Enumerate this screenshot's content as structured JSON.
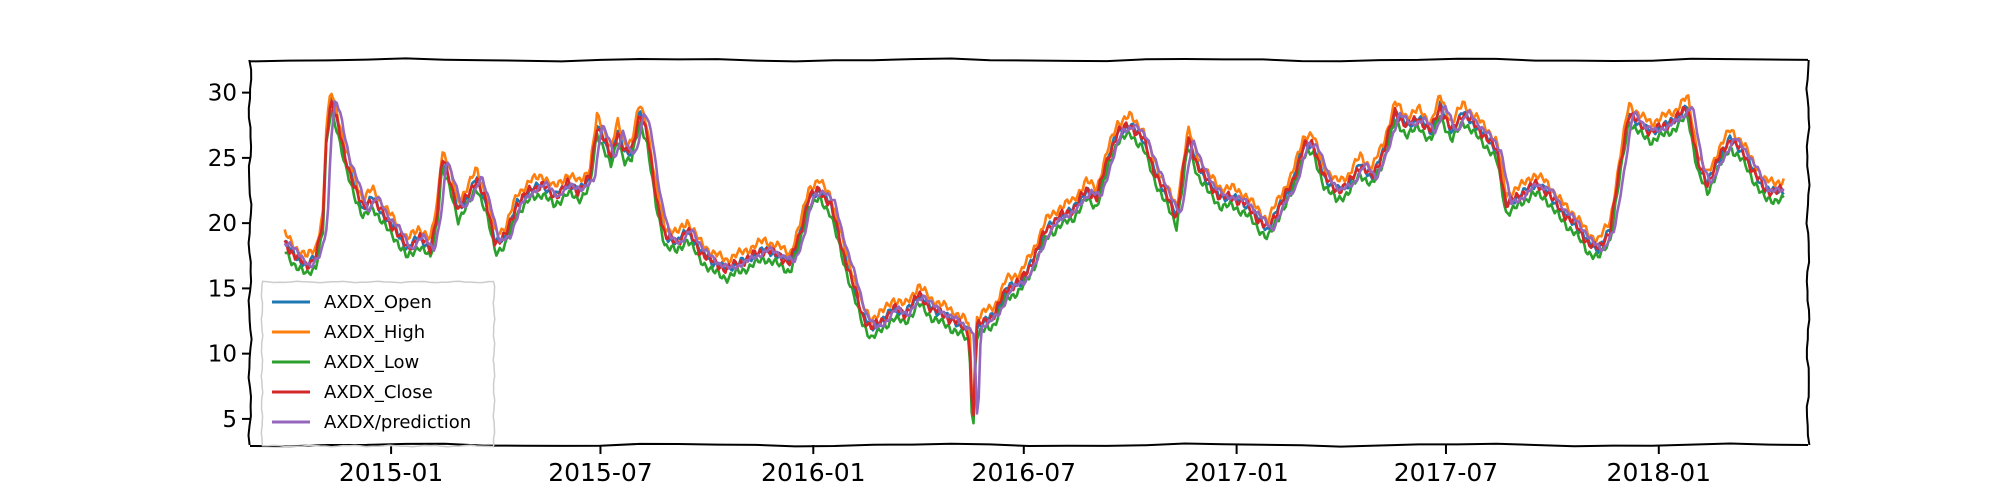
{
  "chart_data": {
    "type": "line",
    "title": "",
    "xlabel": "",
    "ylabel": "",
    "xlim": [
      "2014-09-01",
      "2018-05-10"
    ],
    "ylim": [
      3,
      32.5
    ],
    "yticks": [
      5,
      10,
      15,
      20,
      25,
      30
    ],
    "xticks": [
      {
        "label": "2015-01",
        "date": "2015-01-01"
      },
      {
        "label": "2015-07",
        "date": "2015-07-01"
      },
      {
        "label": "2016-01",
        "date": "2016-01-01"
      },
      {
        "label": "2016-07",
        "date": "2016-07-01"
      },
      {
        "label": "2017-01",
        "date": "2017-01-01"
      },
      {
        "label": "2017-07",
        "date": "2017-07-01"
      },
      {
        "label": "2018-01",
        "date": "2018-01-01"
      }
    ],
    "grid": false,
    "legend_position": "lower-left",
    "base_points": [
      [
        "2014-10-01",
        18.5
      ],
      [
        "2014-10-10",
        17.5
      ],
      [
        "2014-10-20",
        16.7
      ],
      [
        "2014-10-28",
        17.5
      ],
      [
        "2014-11-03",
        20.0
      ],
      [
        "2014-11-06",
        26.5
      ],
      [
        "2014-11-10",
        29.5
      ],
      [
        "2014-11-15",
        28.0
      ],
      [
        "2014-11-22",
        25.0
      ],
      [
        "2014-11-30",
        23.0
      ],
      [
        "2014-12-08",
        21.0
      ],
      [
        "2014-12-16",
        22.0
      ],
      [
        "2014-12-26",
        20.5
      ],
      [
        "2015-01-05",
        19.5
      ],
      [
        "2015-01-15",
        18.0
      ],
      [
        "2015-01-25",
        19.0
      ],
      [
        "2015-02-04",
        18.0
      ],
      [
        "2015-02-10",
        21.0
      ],
      [
        "2015-02-14",
        25.0
      ],
      [
        "2015-02-20",
        23.5
      ],
      [
        "2015-02-28",
        21.0
      ],
      [
        "2015-03-08",
        22.0
      ],
      [
        "2015-03-16",
        23.5
      ],
      [
        "2015-03-24",
        21.5
      ],
      [
        "2015-04-01",
        18.5
      ],
      [
        "2015-04-10",
        19.0
      ],
      [
        "2015-04-20",
        21.5
      ],
      [
        "2015-05-01",
        22.5
      ],
      [
        "2015-05-12",
        23.0
      ],
      [
        "2015-05-22",
        22.0
      ],
      [
        "2015-06-02",
        23.0
      ],
      [
        "2015-06-12",
        22.5
      ],
      [
        "2015-06-22",
        23.5
      ],
      [
        "2015-06-28",
        27.5
      ],
      [
        "2015-07-04",
        26.5
      ],
      [
        "2015-07-10",
        25.0
      ],
      [
        "2015-07-16",
        27.0
      ],
      [
        "2015-07-22",
        25.5
      ],
      [
        "2015-07-28",
        25.5
      ],
      [
        "2015-08-04",
        28.5
      ],
      [
        "2015-08-10",
        27.0
      ],
      [
        "2015-08-18",
        22.0
      ],
      [
        "2015-08-26",
        19.0
      ],
      [
        "2015-09-05",
        18.5
      ],
      [
        "2015-09-14",
        19.5
      ],
      [
        "2015-09-24",
        18.0
      ],
      [
        "2015-10-06",
        17.0
      ],
      [
        "2015-10-18",
        16.5
      ],
      [
        "2015-10-30",
        17.0
      ],
      [
        "2015-11-10",
        17.5
      ],
      [
        "2015-11-20",
        18.0
      ],
      [
        "2015-12-02",
        17.5
      ],
      [
        "2015-12-12",
        17.0
      ],
      [
        "2015-12-20",
        19.0
      ],
      [
        "2015-12-28",
        22.0
      ],
      [
        "2016-01-06",
        22.5
      ],
      [
        "2016-01-16",
        21.5
      ],
      [
        "2016-01-26",
        18.0
      ],
      [
        "2016-02-04",
        15.5
      ],
      [
        "2016-02-12",
        13.0
      ],
      [
        "2016-02-20",
        12.0
      ],
      [
        "2016-03-01",
        12.5
      ],
      [
        "2016-03-10",
        13.5
      ],
      [
        "2016-03-20",
        13.0
      ],
      [
        "2016-04-01",
        14.5
      ],
      [
        "2016-04-12",
        13.5
      ],
      [
        "2016-04-22",
        13.0
      ],
      [
        "2016-05-02",
        12.5
      ],
      [
        "2016-05-10",
        12.0
      ],
      [
        "2016-05-15",
        11.5
      ],
      [
        "2016-05-18",
        4.0
      ],
      [
        "2016-05-21",
        12.0
      ],
      [
        "2016-05-28",
        12.5
      ],
      [
        "2016-06-06",
        13.0
      ],
      [
        "2016-06-16",
        15.0
      ],
      [
        "2016-06-28",
        15.5
      ],
      [
        "2016-07-08",
        17.0
      ],
      [
        "2016-07-20",
        19.5
      ],
      [
        "2016-08-01",
        20.5
      ],
      [
        "2016-08-12",
        21.0
      ],
      [
        "2016-08-24",
        22.5
      ],
      [
        "2016-09-02",
        22.0
      ],
      [
        "2016-09-12",
        25.0
      ],
      [
        "2016-09-20",
        27.0
      ],
      [
        "2016-10-01",
        27.5
      ],
      [
        "2016-10-12",
        26.5
      ],
      [
        "2016-10-22",
        24.0
      ],
      [
        "2016-11-02",
        22.0
      ],
      [
        "2016-11-10",
        20.5
      ],
      [
        "2016-11-20",
        26.5
      ],
      [
        "2016-11-28",
        24.5
      ],
      [
        "2016-12-08",
        23.0
      ],
      [
        "2016-12-18",
        22.0
      ],
      [
        "2016-12-28",
        22.0
      ],
      [
        "2017-01-08",
        21.5
      ],
      [
        "2017-01-18",
        20.5
      ],
      [
        "2017-01-28",
        19.5
      ],
      [
        "2017-02-08",
        21.5
      ],
      [
        "2017-02-18",
        23.0
      ],
      [
        "2017-02-28",
        26.0
      ],
      [
        "2017-03-08",
        26.0
      ],
      [
        "2017-03-18",
        23.5
      ],
      [
        "2017-03-28",
        22.5
      ],
      [
        "2017-04-08",
        23.0
      ],
      [
        "2017-04-18",
        24.5
      ],
      [
        "2017-04-28",
        23.5
      ],
      [
        "2017-05-08",
        25.5
      ],
      [
        "2017-05-18",
        28.5
      ],
      [
        "2017-05-28",
        27.5
      ],
      [
        "2017-06-08",
        28.0
      ],
      [
        "2017-06-18",
        27.0
      ],
      [
        "2017-06-26",
        29.0
      ],
      [
        "2017-07-06",
        27.0
      ],
      [
        "2017-07-16",
        28.5
      ],
      [
        "2017-07-26",
        27.5
      ],
      [
        "2017-08-06",
        26.5
      ],
      [
        "2017-08-14",
        25.5
      ],
      [
        "2017-08-22",
        21.5
      ],
      [
        "2017-09-02",
        22.0
      ],
      [
        "2017-09-14",
        23.0
      ],
      [
        "2017-09-26",
        22.5
      ],
      [
        "2017-10-08",
        21.0
      ],
      [
        "2017-10-20",
        20.0
      ],
      [
        "2017-11-01",
        18.5
      ],
      [
        "2017-11-10",
        18.0
      ],
      [
        "2017-11-20",
        19.5
      ],
      [
        "2017-11-28",
        24.0
      ],
      [
        "2017-12-06",
        28.5
      ],
      [
        "2017-12-16",
        27.5
      ],
      [
        "2017-12-26",
        27.0
      ],
      [
        "2018-01-06",
        27.5
      ],
      [
        "2018-01-16",
        28.0
      ],
      [
        "2018-01-26",
        29.0
      ],
      [
        "2018-02-04",
        24.5
      ],
      [
        "2018-02-12",
        23.0
      ],
      [
        "2018-02-22",
        25.0
      ],
      [
        "2018-03-04",
        26.5
      ],
      [
        "2018-03-14",
        25.5
      ],
      [
        "2018-03-24",
        24.0
      ],
      [
        "2018-04-03",
        22.5
      ],
      [
        "2018-04-12",
        22.5
      ],
      [
        "2018-04-20",
        22.5
      ]
    ],
    "series": [
      {
        "name": "AXDX_Open",
        "color": "#1f77b4",
        "offset": 0.0,
        "noise": 0.35
      },
      {
        "name": "AXDX_High",
        "color": "#ff7f0e",
        "offset": 0.7,
        "noise": 0.4
      },
      {
        "name": "AXDX_Low",
        "color": "#2ca02c",
        "offset": -0.7,
        "noise": 0.4
      },
      {
        "name": "AXDX_Close",
        "color": "#d62728",
        "offset": 0.0,
        "noise": 0.45
      },
      {
        "name": "AXDX/prediction",
        "color": "#9467bd",
        "offset": 0.0,
        "noise": 0.25,
        "lag_days": 4
      }
    ]
  }
}
